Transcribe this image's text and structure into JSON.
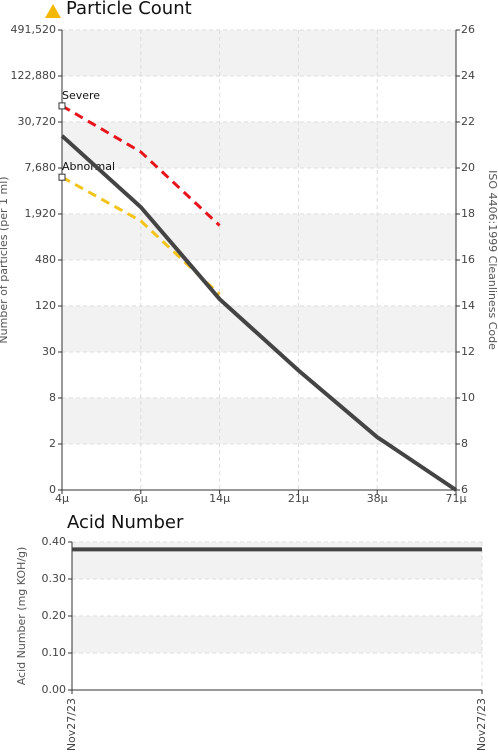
{
  "chart_data": [
    {
      "type": "line",
      "title": "Particle Count",
      "ylabel": "Number of particles (per 1 ml)",
      "y2label": "ISO 4406:1999 Cleanliness Code",
      "categories": [
        "4μ",
        "6μ",
        "14μ",
        "21μ",
        "38μ",
        "71μ"
      ],
      "yticks": [
        0,
        2,
        8,
        30,
        120,
        480,
        {
          "value": 1920,
          "label": "1,920"
        },
        {
          "value": 7680,
          "label": "7,680"
        },
        {
          "value": 30720,
          "label": "30,720"
        },
        {
          "value": 122880,
          "label": "122,880"
        },
        {
          "value": 491520,
          "label": "491,520"
        }
      ],
      "y2lim": [
        6,
        26
      ],
      "y2ticks": [
        6,
        8,
        10,
        12,
        14,
        16,
        18,
        20,
        22,
        24,
        26
      ],
      "grid": true,
      "series": [
        {
          "name": "Severe",
          "color": "#e8141c",
          "dashed": true,
          "axis": "y2",
          "values": [
            22.7,
            20.7,
            17.5,
            null,
            null,
            null
          ]
        },
        {
          "name": "Abnormal",
          "color": "#f2c31a",
          "dashed": true,
          "axis": "y2",
          "values": [
            19.6,
            17.7,
            14.5,
            null,
            null,
            null
          ]
        },
        {
          "name": null,
          "color": "#444444",
          "dashed": false,
          "axis": "y2",
          "values": [
            21.4,
            18.3,
            14.3,
            11.2,
            8.3,
            6
          ]
        }
      ]
    },
    {
      "type": "line",
      "title": "Acid Number",
      "ylabel": "Acid Number (mg KOH/g)",
      "categories": [
        "Nov27/23",
        "Nov27/23"
      ],
      "ylim": [
        0,
        0.4
      ],
      "yticks": [
        {
          "value": 0,
          "label": "0.00"
        },
        {
          "value": 0.1,
          "label": "0.10"
        },
        {
          "value": 0.2,
          "label": "0.20"
        },
        {
          "value": 0.3,
          "label": "0.30"
        },
        {
          "value": 0.4,
          "label": "0.40"
        }
      ],
      "grid": true,
      "series": [
        {
          "name": null,
          "color": "#444444",
          "values": [
            0.38,
            0.38
          ]
        }
      ]
    }
  ]
}
